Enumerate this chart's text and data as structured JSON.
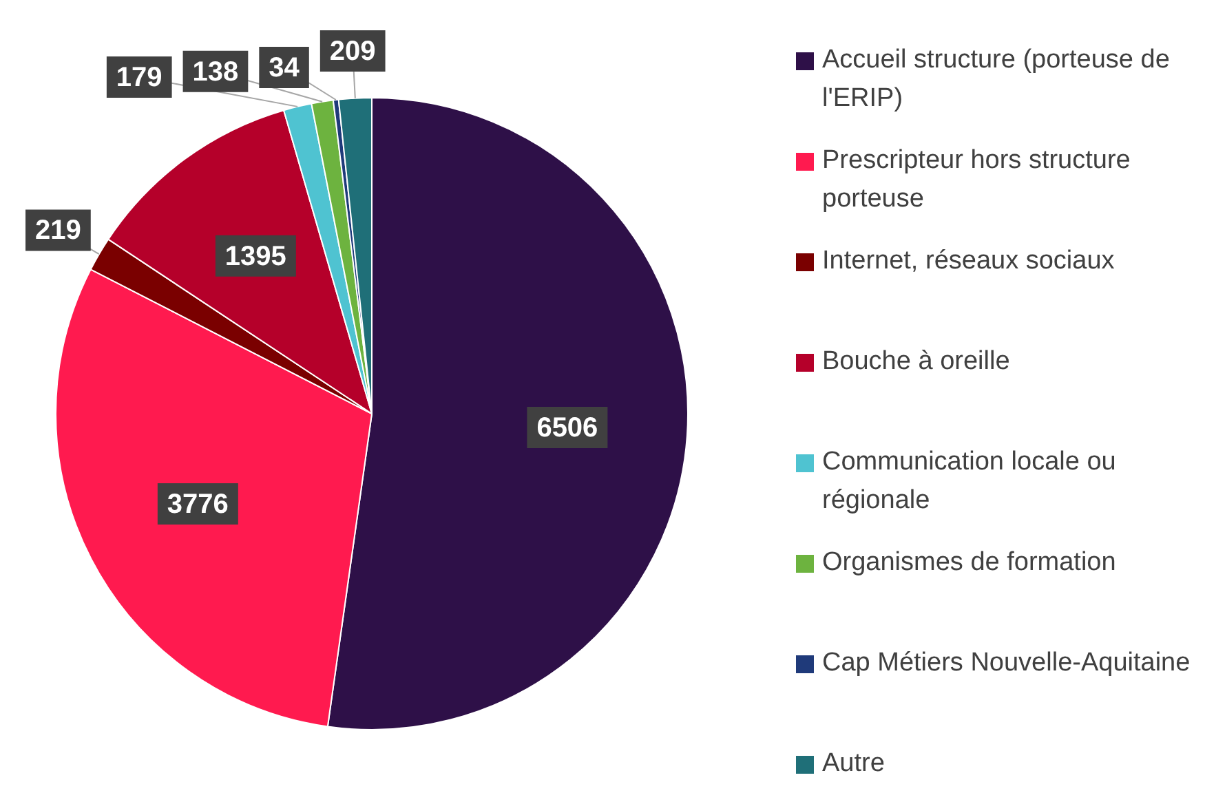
{
  "chart_data": {
    "type": "pie",
    "categories": [
      "Accueil structure (porteuse de l'ERIP)",
      "Prescripteur hors structure porteuse",
      "Internet, réseaux sociaux",
      "Bouche à oreille",
      "Communication locale ou régionale",
      "Organismes de formation",
      "Cap Métiers Nouvelle-Aquitaine",
      "Autre"
    ],
    "values": [
      6506,
      3776,
      219,
      1395,
      179,
      138,
      34,
      209
    ],
    "colors": [
      "#2e1048",
      "#ff1a4f",
      "#7a0000",
      "#b5002a",
      "#4fc3d1",
      "#6db33f",
      "#1f3a7a",
      "#1f6f78"
    ],
    "data_labels": true,
    "legend": "right"
  }
}
